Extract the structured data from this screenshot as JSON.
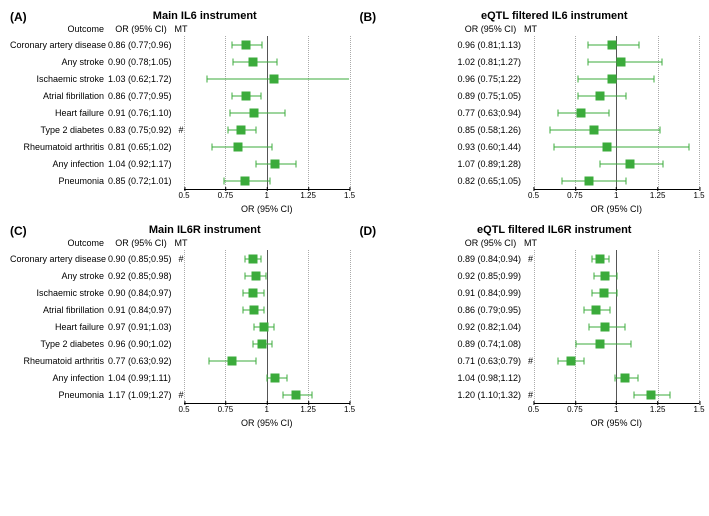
{
  "color_marker": "#3bab3b",
  "panels": [
    {
      "letter": "(A)",
      "title": "Main IL6 instrument",
      "show_outcome_header": true,
      "xmin": 0.5,
      "xmax": 1.5,
      "ticks": [
        0.5,
        0.75,
        1.0,
        1.25,
        1.5
      ],
      "xlabel": "OR (95% CI)",
      "rows": [
        {
          "outcome": "Coronary artery disease",
          "or": "0.86 (0.77;0.96)",
          "mt": "",
          "pt": 0.86,
          "lo": 0.77,
          "hi": 0.96
        },
        {
          "outcome": "Any stroke",
          "or": "0.90 (0.78;1.05)",
          "mt": "",
          "pt": 0.9,
          "lo": 0.78,
          "hi": 1.05
        },
        {
          "outcome": "Ischaemic stroke",
          "or": "1.03 (0.62;1.72)",
          "mt": "",
          "pt": 1.03,
          "lo": 0.62,
          "hi": 1.72
        },
        {
          "outcome": "Atrial fibrillation",
          "or": "0.86 (0.77;0.95)",
          "mt": "",
          "pt": 0.86,
          "lo": 0.77,
          "hi": 0.95
        },
        {
          "outcome": "Heart failure",
          "or": "0.91 (0.76;1.10)",
          "mt": "",
          "pt": 0.91,
          "lo": 0.76,
          "hi": 1.1
        },
        {
          "outcome": "Type 2 diabetes",
          "or": "0.83 (0.75;0.92)",
          "mt": "#",
          "pt": 0.83,
          "lo": 0.75,
          "hi": 0.92
        },
        {
          "outcome": "Rheumatoid arthritis",
          "or": "0.81 (0.65;1.02)",
          "mt": "",
          "pt": 0.81,
          "lo": 0.65,
          "hi": 1.02
        },
        {
          "outcome": "Any infection",
          "or": "1.04 (0.92;1.17)",
          "mt": "",
          "pt": 1.04,
          "lo": 0.92,
          "hi": 1.17
        },
        {
          "outcome": "Pneumonia",
          "or": "0.85 (0.72;1.01)",
          "mt": "",
          "pt": 0.85,
          "lo": 0.72,
          "hi": 1.01
        }
      ]
    },
    {
      "letter": "(B)",
      "title": "eQTL filtered IL6 instrument",
      "show_outcome_header": false,
      "xmin": 0.5,
      "xmax": 1.5,
      "ticks": [
        0.5,
        0.75,
        1.0,
        1.25,
        1.5
      ],
      "xlabel": "OR (95% CI)",
      "rows": [
        {
          "outcome": "",
          "or": "0.96 (0.81;1.13)",
          "mt": "",
          "pt": 0.96,
          "lo": 0.81,
          "hi": 1.13
        },
        {
          "outcome": "",
          "or": "1.02 (0.81;1.27)",
          "mt": "",
          "pt": 1.02,
          "lo": 0.81,
          "hi": 1.27
        },
        {
          "outcome": "",
          "or": "0.96 (0.75;1.22)",
          "mt": "",
          "pt": 0.96,
          "lo": 0.75,
          "hi": 1.22
        },
        {
          "outcome": "",
          "or": "0.89 (0.75;1.05)",
          "mt": "",
          "pt": 0.89,
          "lo": 0.75,
          "hi": 1.05
        },
        {
          "outcome": "",
          "or": "0.77 (0.63;0.94)",
          "mt": "",
          "pt": 0.77,
          "lo": 0.63,
          "hi": 0.94
        },
        {
          "outcome": "",
          "or": "0.85 (0.58;1.26)",
          "mt": "",
          "pt": 0.85,
          "lo": 0.58,
          "hi": 1.26
        },
        {
          "outcome": "",
          "or": "0.93 (0.60;1.44)",
          "mt": "",
          "pt": 0.93,
          "lo": 0.6,
          "hi": 1.44
        },
        {
          "outcome": "",
          "or": "1.07 (0.89;1.28)",
          "mt": "",
          "pt": 1.07,
          "lo": 0.89,
          "hi": 1.28
        },
        {
          "outcome": "",
          "or": "0.82 (0.65;1.05)",
          "mt": "",
          "pt": 0.82,
          "lo": 0.65,
          "hi": 1.05
        }
      ]
    },
    {
      "letter": "(C)",
      "title": "Main IL6R instrument",
      "show_outcome_header": true,
      "xmin": 0.5,
      "xmax": 1.5,
      "ticks": [
        0.5,
        0.75,
        1.0,
        1.25,
        1.5
      ],
      "xlabel": "OR (95% CI)",
      "rows": [
        {
          "outcome": "Coronary artery disease",
          "or": "0.90 (0.85;0.95)",
          "mt": "#",
          "pt": 0.9,
          "lo": 0.85,
          "hi": 0.95
        },
        {
          "outcome": "Any stroke",
          "or": "0.92 (0.85;0.98)",
          "mt": "",
          "pt": 0.92,
          "lo": 0.85,
          "hi": 0.98
        },
        {
          "outcome": "Ischaemic stroke",
          "or": "0.90 (0.84;0.97)",
          "mt": "",
          "pt": 0.9,
          "lo": 0.84,
          "hi": 0.97
        },
        {
          "outcome": "Atrial fibrillation",
          "or": "0.91 (0.84;0.97)",
          "mt": "",
          "pt": 0.91,
          "lo": 0.84,
          "hi": 0.97
        },
        {
          "outcome": "Heart failure",
          "or": "0.97 (0.91;1.03)",
          "mt": "",
          "pt": 0.97,
          "lo": 0.91,
          "hi": 1.03
        },
        {
          "outcome": "Type 2 diabetes",
          "or": "0.96 (0.90;1.02)",
          "mt": "",
          "pt": 0.96,
          "lo": 0.9,
          "hi": 1.02
        },
        {
          "outcome": "Rheumatoid arthritis",
          "or": "0.77 (0.63;0.92)",
          "mt": "",
          "pt": 0.77,
          "lo": 0.63,
          "hi": 0.92
        },
        {
          "outcome": "Any infection",
          "or": "1.04 (0.99;1.11)",
          "mt": "",
          "pt": 1.04,
          "lo": 0.99,
          "hi": 1.11
        },
        {
          "outcome": "Pneumonia",
          "or": "1.17 (1.09;1.27)",
          "mt": "#",
          "pt": 1.17,
          "lo": 1.09,
          "hi": 1.27
        }
      ]
    },
    {
      "letter": "(D)",
      "title": "eQTL filtered IL6R instrument",
      "show_outcome_header": false,
      "xmin": 0.5,
      "xmax": 1.5,
      "ticks": [
        0.5,
        0.75,
        1.0,
        1.25,
        1.5
      ],
      "xlabel": "OR (95% CI)",
      "rows": [
        {
          "outcome": "",
          "or": "0.89 (0.84;0.94)",
          "mt": "#",
          "pt": 0.89,
          "lo": 0.84,
          "hi": 0.94
        },
        {
          "outcome": "",
          "or": "0.92 (0.85;0.99)",
          "mt": "",
          "pt": 0.92,
          "lo": 0.85,
          "hi": 0.99
        },
        {
          "outcome": "",
          "or": "0.91 (0.84;0.99)",
          "mt": "",
          "pt": 0.91,
          "lo": 0.84,
          "hi": 0.99
        },
        {
          "outcome": "",
          "or": "0.86 (0.79;0.95)",
          "mt": "",
          "pt": 0.86,
          "lo": 0.79,
          "hi": 0.95
        },
        {
          "outcome": "",
          "or": "0.92 (0.82;1.04)",
          "mt": "",
          "pt": 0.92,
          "lo": 0.82,
          "hi": 1.04
        },
        {
          "outcome": "",
          "or": "0.89 (0.74;1.08)",
          "mt": "",
          "pt": 0.89,
          "lo": 0.74,
          "hi": 1.08
        },
        {
          "outcome": "",
          "or": "0.71 (0.63;0.79)",
          "mt": "#",
          "pt": 0.71,
          "lo": 0.63,
          "hi": 0.79
        },
        {
          "outcome": "",
          "or": "1.04 (0.98;1.12)",
          "mt": "",
          "pt": 1.04,
          "lo": 0.98,
          "hi": 1.12
        },
        {
          "outcome": "",
          "or": "1.20 (1.10;1.32)",
          "mt": "#",
          "pt": 1.2,
          "lo": 1.1,
          "hi": 1.32
        }
      ]
    }
  ],
  "header_labels": {
    "outcome": "Outcome",
    "or": "OR (95% CI)",
    "mt": "MT"
  }
}
